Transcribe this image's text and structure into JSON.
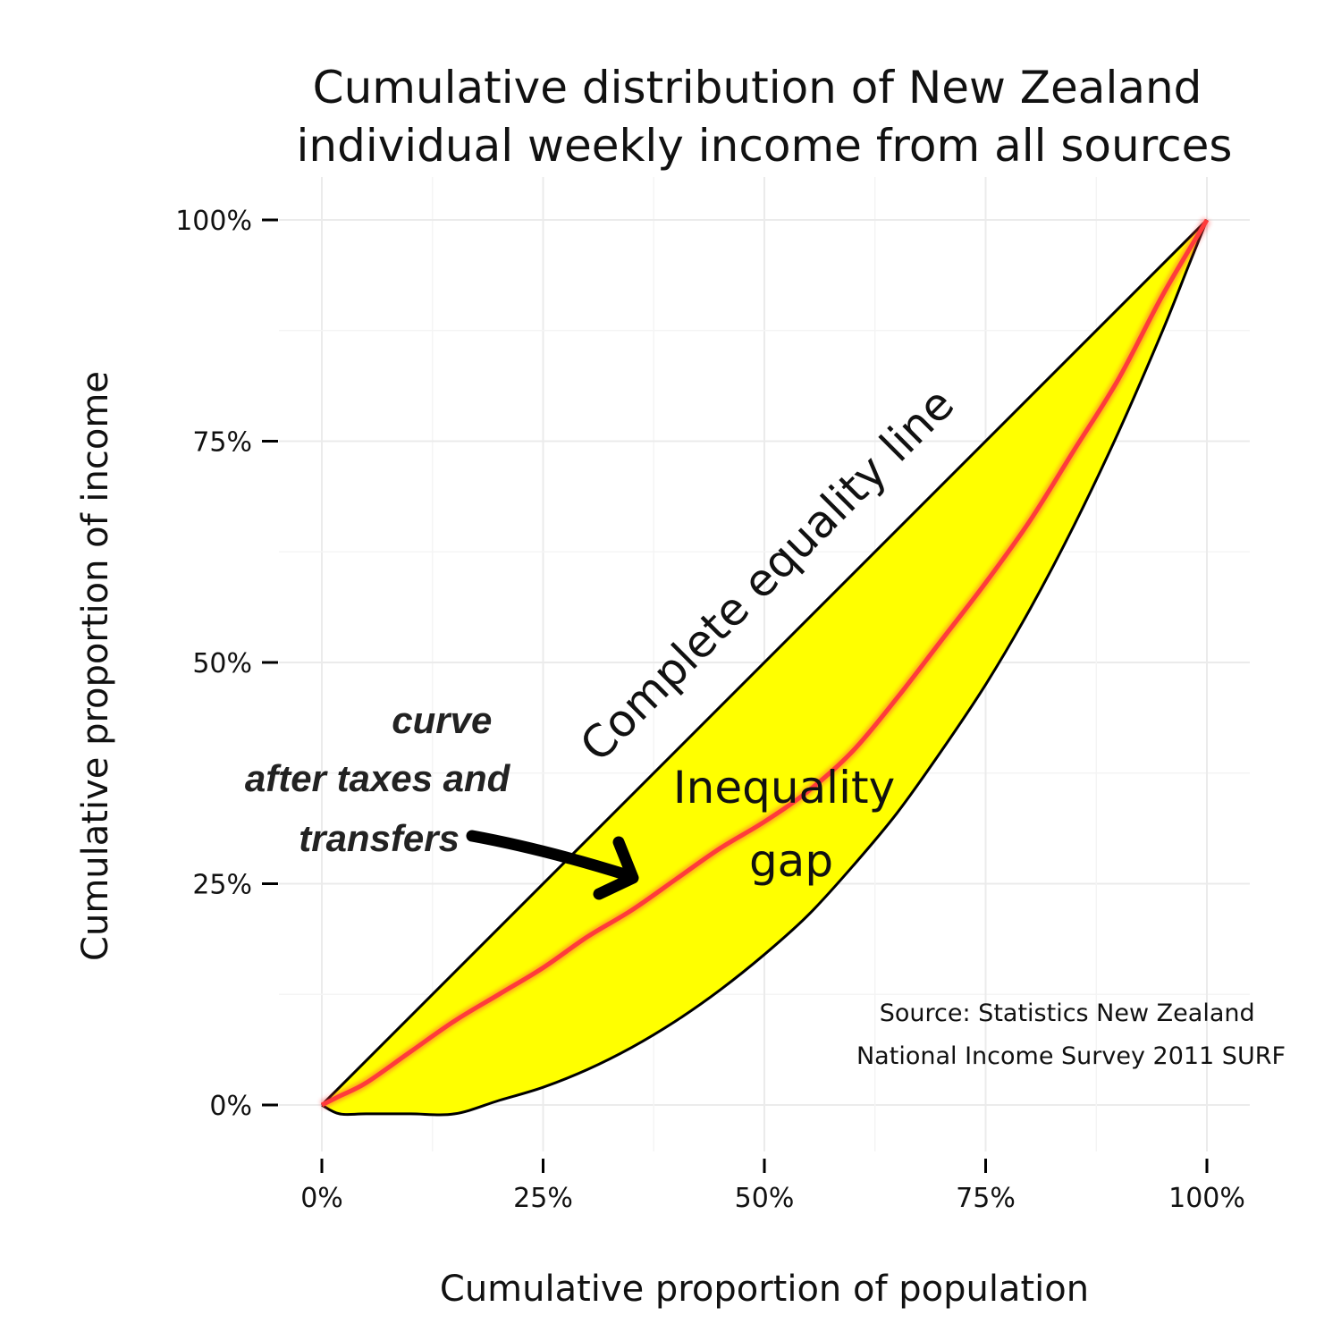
{
  "chart_data": {
    "type": "line",
    "title": "Cumulative distribution of New Zealand individual weekly income from all sources",
    "title_lines": [
      "Cumulative distribution of New Zealand",
      "individual weekly income from all sources"
    ],
    "xlabel": "Cumulative proportion of population",
    "ylabel": "Cumulative proportion of income",
    "xlim": [
      0,
      1
    ],
    "ylim": [
      0,
      1
    ],
    "x_ticks": [
      0,
      0.25,
      0.5,
      0.75,
      1
    ],
    "y_ticks": [
      0,
      0.25,
      0.5,
      0.75,
      1
    ],
    "x_tick_labels": [
      "0%",
      "25%",
      "50%",
      "75%",
      "100%"
    ],
    "y_tick_labels": [
      "0%",
      "25%",
      "50%",
      "75%",
      "100%"
    ],
    "grid": true,
    "fill_color": "#ffff00",
    "series": [
      {
        "color": "#000000",
        "x": [
          0,
          1
        ],
        "y": [
          0,
          1
        ]
      },
      {
        "color": "#000000",
        "x": [
          0,
          0.02,
          0.05,
          0.1,
          0.15,
          0.2,
          0.25,
          0.3,
          0.35,
          0.4,
          0.45,
          0.5,
          0.55,
          0.6,
          0.65,
          0.7,
          0.75,
          0.8,
          0.85,
          0.9,
          0.95,
          0.98,
          1
        ],
        "y": [
          0,
          -0.01,
          -0.01,
          -0.01,
          -0.01,
          0.005,
          0.02,
          0.04,
          0.065,
          0.095,
          0.13,
          0.17,
          0.215,
          0.27,
          0.33,
          0.4,
          0.475,
          0.56,
          0.655,
          0.76,
          0.875,
          0.95,
          1
        ]
      },
      {
        "color": "#ff3b3b",
        "x": [
          0,
          0.02,
          0.05,
          0.1,
          0.15,
          0.2,
          0.25,
          0.3,
          0.35,
          0.4,
          0.45,
          0.5,
          0.55,
          0.6,
          0.65,
          0.7,
          0.75,
          0.8,
          0.85,
          0.9,
          0.95,
          1
        ],
        "y": [
          0,
          0.01,
          0.025,
          0.06,
          0.095,
          0.125,
          0.155,
          0.19,
          0.22,
          0.255,
          0.29,
          0.32,
          0.355,
          0.4,
          0.46,
          0.525,
          0.59,
          0.66,
          0.74,
          0.82,
          0.915,
          1
        ]
      }
    ],
    "annotations": {
      "equality_line": "Complete equality line",
      "gap_line1": "Inequality",
      "gap_line2": "gap",
      "after_line1": "curve",
      "after_line2": "after taxes and",
      "after_line3": "transfers",
      "source_line1": "Source: Statistics New Zealand",
      "source_line2": "National Income Survey 2011 SURF"
    }
  }
}
